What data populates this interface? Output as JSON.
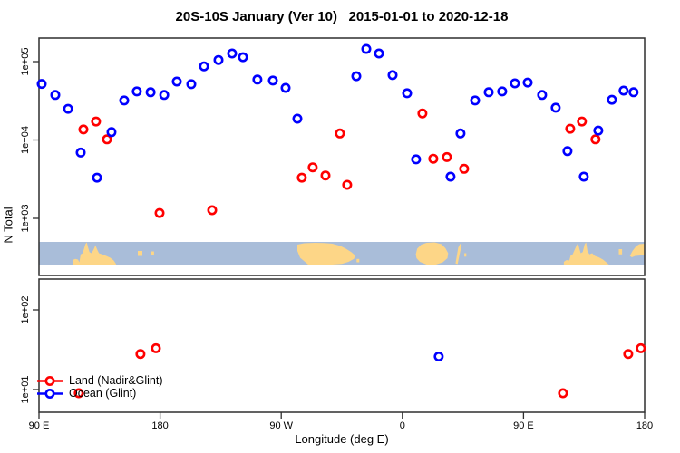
{
  "title": "20S-10S January (Ver 10)   2015-01-01 to 2020-12-18",
  "chart_data": {
    "type": "scatter",
    "title": "20S-10S January (Ver 10)   2015-01-01 to 2020-12-18",
    "xlabel": "Longitude (deg E)",
    "ylabel": "N Total",
    "x_axis": {
      "range_deg": [
        0,
        450
      ],
      "tick_positions_deg": [
        0,
        90,
        180,
        270,
        360,
        450
      ],
      "tick_labels": [
        "90 E",
        "180",
        "90 W",
        "0",
        "90 E",
        "180"
      ],
      "note": "longitude axis wraps eastward from 90E through 180, 90W, 0, 90E to 180"
    },
    "y_axis": {
      "scale": "log10",
      "top_panel_tick_values": [
        1000,
        10000,
        100000
      ],
      "top_panel_tick_labels": [
        "1e+03",
        "1e+04",
        "1e+05"
      ],
      "bottom_panel_tick_values": [
        10,
        100
      ],
      "bottom_panel_tick_labels": [
        "1e+01",
        "1e+02"
      ],
      "split": "upper panel shows N>=1000, lower panel shows N<=100"
    },
    "legend": {
      "position": "bottom-left",
      "items": [
        {
          "label": "Land (Nadir&Glint)",
          "color": "#ff0000"
        },
        {
          "label": "Ocean (Glint)",
          "color": "#0000ff"
        }
      ]
    },
    "series": [
      {
        "name": "Land (Nadir&Glint)",
        "color": "#ff0000",
        "points": [
          {
            "x": 33.0,
            "n": 13600
          },
          {
            "x": 42.4,
            "n": 17200
          },
          {
            "x": 50.5,
            "n": 10200
          },
          {
            "x": 89.6,
            "n": 1170
          },
          {
            "x": 128.7,
            "n": 1270
          },
          {
            "x": 195.3,
            "n": 3300
          },
          {
            "x": 203.4,
            "n": 4480
          },
          {
            "x": 212.9,
            "n": 3520
          },
          {
            "x": 223.6,
            "n": 12100
          },
          {
            "x": 229.0,
            "n": 2680
          },
          {
            "x": 284.9,
            "n": 21800
          },
          {
            "x": 293.0,
            "n": 5770
          },
          {
            "x": 303.1,
            "n": 6050
          },
          {
            "x": 315.9,
            "n": 4290
          },
          {
            "x": 394.7,
            "n": 13900
          },
          {
            "x": 403.4,
            "n": 17200
          },
          {
            "x": 413.5,
            "n": 10200
          },
          {
            "x": 29.6,
            "n": 9
          },
          {
            "x": 75.4,
            "n": 28
          },
          {
            "x": 86.9,
            "n": 33
          },
          {
            "x": 389.3,
            "n": 9
          },
          {
            "x": 437.8,
            "n": 28
          },
          {
            "x": 447.2,
            "n": 33
          }
        ]
      },
      {
        "name": "Ocean (Glint)",
        "color": "#0000ff",
        "points": [
          {
            "x": 2.0,
            "n": 52000
          },
          {
            "x": 12.1,
            "n": 37500
          },
          {
            "x": 21.6,
            "n": 25000
          },
          {
            "x": 31.0,
            "n": 6900
          },
          {
            "x": 43.1,
            "n": 3300
          },
          {
            "x": 53.9,
            "n": 12600
          },
          {
            "x": 63.3,
            "n": 31900
          },
          {
            "x": 72.7,
            "n": 41700
          },
          {
            "x": 82.9,
            "n": 40700
          },
          {
            "x": 93.0,
            "n": 37500
          },
          {
            "x": 102.4,
            "n": 55700
          },
          {
            "x": 113.2,
            "n": 51600
          },
          {
            "x": 122.6,
            "n": 87000
          },
          {
            "x": 133.4,
            "n": 105000
          },
          {
            "x": 143.5,
            "n": 127000
          },
          {
            "x": 151.6,
            "n": 114000
          },
          {
            "x": 162.3,
            "n": 59000
          },
          {
            "x": 173.8,
            "n": 57400
          },
          {
            "x": 183.2,
            "n": 46200
          },
          {
            "x": 192.0,
            "n": 18700
          },
          {
            "x": 235.8,
            "n": 65200
          },
          {
            "x": 243.2,
            "n": 145000
          },
          {
            "x": 252.6,
            "n": 127000
          },
          {
            "x": 262.7,
            "n": 67300
          },
          {
            "x": 273.5,
            "n": 39500
          },
          {
            "x": 280.2,
            "n": 5650
          },
          {
            "x": 305.8,
            "n": 3400
          },
          {
            "x": 313.2,
            "n": 12100
          },
          {
            "x": 324.0,
            "n": 31900
          },
          {
            "x": 334.1,
            "n": 40700
          },
          {
            "x": 344.2,
            "n": 41700
          },
          {
            "x": 353.6,
            "n": 52800
          },
          {
            "x": 363.1,
            "n": 54100
          },
          {
            "x": 373.8,
            "n": 37500
          },
          {
            "x": 383.9,
            "n": 25800
          },
          {
            "x": 392.7,
            "n": 7200
          },
          {
            "x": 404.8,
            "n": 3400
          },
          {
            "x": 415.6,
            "n": 13200
          },
          {
            "x": 425.7,
            "n": 32600
          },
          {
            "x": 434.4,
            "n": 42700
          },
          {
            "x": 441.8,
            "n": 40700
          },
          {
            "x": 297.0,
            "n": 26
          }
        ]
      }
    ],
    "map_strip": {
      "ocean_color": "#a9bdd9",
      "land_color": "#fdd687",
      "land_patches": [
        [
          [
            25,
            1
          ],
          [
            25,
            0.8
          ],
          [
            27,
            0.75
          ],
          [
            29,
            0.78
          ],
          [
            30,
            0.9
          ],
          [
            31,
            0.55
          ],
          [
            32.5,
            0.5
          ],
          [
            33.5,
            0.3
          ],
          [
            34.5,
            0.1
          ],
          [
            35.5,
            0.02
          ],
          [
            36.5,
            0.25
          ],
          [
            37.5,
            0.45
          ],
          [
            39,
            0.5
          ],
          [
            40.5,
            0.35
          ],
          [
            42,
            0.15
          ],
          [
            43,
            0.3
          ],
          [
            44.5,
            0.5
          ],
          [
            47,
            0.55
          ],
          [
            50,
            0.62
          ],
          [
            53,
            0.7
          ],
          [
            55.5,
            0.82
          ],
          [
            57,
            0.95
          ],
          [
            57.3,
            1
          ]
        ],
        [
          [
            73.4,
            0.4
          ],
          [
            76.8,
            0.4
          ],
          [
            76.8,
            0.62
          ],
          [
            73.4,
            0.62
          ]
        ],
        [
          [
            83.5,
            0.42
          ],
          [
            85.5,
            0.42
          ],
          [
            85.5,
            0.6
          ],
          [
            83.5,
            0.6
          ]
        ],
        [
          [
            192,
            0.12
          ],
          [
            197,
            0.06
          ],
          [
            205,
            0.04
          ],
          [
            212,
            0.05
          ],
          [
            218,
            0.08
          ],
          [
            224,
            0.18
          ],
          [
            228,
            0.3
          ],
          [
            232,
            0.45
          ],
          [
            235,
            0.6
          ],
          [
            234,
            0.75
          ],
          [
            230,
            0.88
          ],
          [
            225,
            0.97
          ],
          [
            218,
            1
          ],
          [
            200,
            1
          ],
          [
            194,
            0.7
          ],
          [
            192,
            0.4
          ]
        ],
        [
          [
            236,
            0.75
          ],
          [
            238,
            0.75
          ],
          [
            238,
            0.9
          ],
          [
            236,
            0.9
          ]
        ],
        [
          [
            280,
            0.55
          ],
          [
            281,
            0.3
          ],
          [
            284,
            0.12
          ],
          [
            288,
            0.04
          ],
          [
            294,
            0.02
          ],
          [
            299,
            0.1
          ],
          [
            302,
            0.28
          ],
          [
            304,
            0.5
          ],
          [
            303.5,
            0.72
          ],
          [
            300,
            0.9
          ],
          [
            295,
            1
          ],
          [
            288,
            1
          ],
          [
            283,
            0.88
          ],
          [
            280.5,
            0.72
          ]
        ],
        [
          [
            309.5,
            0.95
          ],
          [
            310.5,
            0.6
          ],
          [
            311.5,
            0.25
          ],
          [
            313,
            0.08
          ],
          [
            314,
            0.15
          ],
          [
            312.5,
            0.55
          ],
          [
            311,
            0.98
          ]
        ],
        [
          [
            316,
            0.5
          ],
          [
            317.5,
            0.5
          ],
          [
            317.5,
            0.65
          ],
          [
            316,
            0.65
          ]
        ],
        [
          [
            390,
            1
          ],
          [
            390,
            0.88
          ],
          [
            392,
            0.8
          ],
          [
            394,
            0.82
          ],
          [
            395,
            0.6
          ],
          [
            396.5,
            0.55
          ],
          [
            398,
            0.35
          ],
          [
            399.5,
            0.15
          ],
          [
            400.5,
            0.05
          ],
          [
            401.5,
            0.3
          ],
          [
            402.5,
            0.5
          ],
          [
            404,
            0.45
          ],
          [
            405.5,
            0.1
          ],
          [
            406.5,
            0.02
          ],
          [
            407.5,
            0.4
          ],
          [
            409,
            0.55
          ],
          [
            411,
            0.5
          ],
          [
            413,
            0.62
          ],
          [
            416,
            0.68
          ],
          [
            419,
            0.78
          ],
          [
            421.5,
            0.9
          ],
          [
            423,
            0.98
          ],
          [
            423.5,
            1
          ]
        ],
        [
          [
            430.8,
            0.32
          ],
          [
            433.2,
            0.32
          ],
          [
            433.2,
            0.55
          ],
          [
            430.8,
            0.55
          ]
        ],
        [
          [
            439,
            0.62
          ],
          [
            441,
            0.4
          ],
          [
            443.5,
            0.2
          ],
          [
            446,
            0.1
          ],
          [
            450,
            0.08
          ],
          [
            450,
            0.55
          ],
          [
            447,
            0.6
          ],
          [
            443,
            0.62
          ],
          [
            440.5,
            0.68
          ]
        ]
      ]
    }
  }
}
